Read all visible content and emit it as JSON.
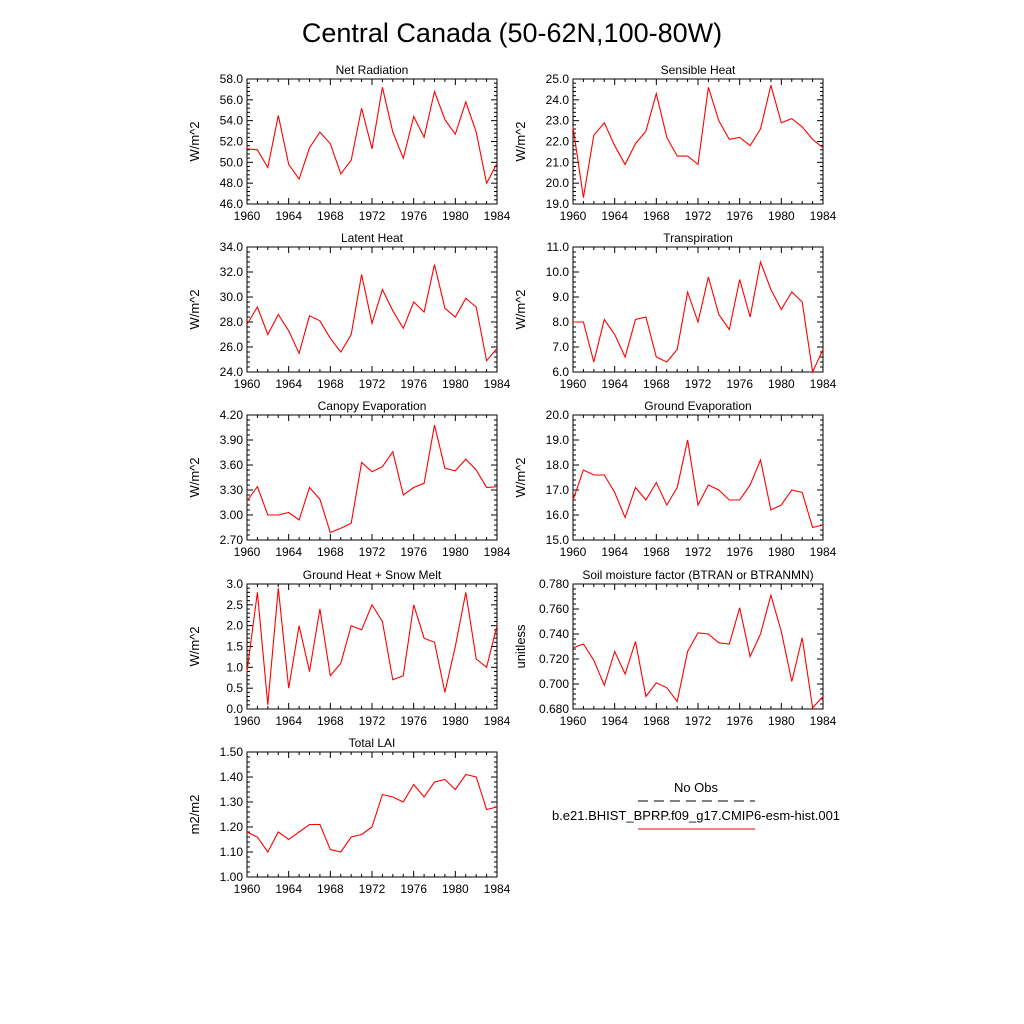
{
  "title": "Central Canada (50-62N,100-80W)",
  "line_color": "#ff0000",
  "legend": {
    "obs_label": "No Obs",
    "model_label": "b.e21.BHIST_BPRP.f09_g17.CMIP6-esm-hist.001"
  },
  "chart_data": [
    {
      "type": "line",
      "title": "Net Radiation",
      "ylabel": "W/m^2",
      "xlim": [
        1960,
        1984
      ],
      "ylim": [
        46.0,
        58.0
      ],
      "x_ticks": [
        1960,
        1964,
        1968,
        1972,
        1976,
        1980,
        1984
      ],
      "y_ticks": [
        "46.0",
        "48.0",
        "50.0",
        "52.0",
        "54.0",
        "56.0",
        "58.0"
      ],
      "x": [
        1960,
        1961,
        1962,
        1963,
        1964,
        1965,
        1966,
        1967,
        1968,
        1969,
        1970,
        1971,
        1972,
        1973,
        1974,
        1975,
        1976,
        1977,
        1978,
        1979,
        1980,
        1981,
        1982,
        1983,
        1984
      ],
      "values": [
        51.3,
        51.2,
        49.5,
        54.5,
        49.8,
        48.4,
        51.4,
        52.9,
        51.8,
        48.9,
        50.2,
        55.2,
        51.3,
        57.2,
        52.9,
        50.4,
        54.4,
        52.4,
        56.8,
        54.1,
        52.7,
        55.8,
        52.9,
        48.0,
        49.9
      ]
    },
    {
      "type": "line",
      "title": "Sensible Heat",
      "ylabel": "W/m^2",
      "xlim": [
        1960,
        1984
      ],
      "ylim": [
        19.0,
        25.0
      ],
      "x_ticks": [
        1960,
        1964,
        1968,
        1972,
        1976,
        1980,
        1984
      ],
      "y_ticks": [
        "19.0",
        "20.0",
        "21.0",
        "22.0",
        "23.0",
        "24.0",
        "25.0"
      ],
      "x": [
        1960,
        1961,
        1962,
        1963,
        1964,
        1965,
        1966,
        1967,
        1968,
        1969,
        1970,
        1971,
        1972,
        1973,
        1974,
        1975,
        1976,
        1977,
        1978,
        1979,
        1980,
        1981,
        1982,
        1983,
        1984
      ],
      "values": [
        22.7,
        19.3,
        22.3,
        22.9,
        21.8,
        20.9,
        21.9,
        22.5,
        24.3,
        22.2,
        21.3,
        21.3,
        20.9,
        24.6,
        23.0,
        22.1,
        22.2,
        21.8,
        22.6,
        24.7,
        22.9,
        23.1,
        22.7,
        22.1,
        21.7
      ]
    },
    {
      "type": "line",
      "title": "Latent Heat",
      "ylabel": "W/m^2",
      "xlim": [
        1960,
        1984
      ],
      "ylim": [
        24.0,
        34.0
      ],
      "x_ticks": [
        1960,
        1964,
        1968,
        1972,
        1976,
        1980,
        1984
      ],
      "y_ticks": [
        "24.0",
        "26.0",
        "28.0",
        "30.0",
        "32.0",
        "34.0"
      ],
      "x": [
        1960,
        1961,
        1962,
        1963,
        1964,
        1965,
        1966,
        1967,
        1968,
        1969,
        1970,
        1971,
        1972,
        1973,
        1974,
        1975,
        1976,
        1977,
        1978,
        1979,
        1980,
        1981,
        1982,
        1983,
        1984
      ],
      "values": [
        27.8,
        29.2,
        27.0,
        28.6,
        27.3,
        25.5,
        28.5,
        28.1,
        26.7,
        25.6,
        27.0,
        31.8,
        27.9,
        30.6,
        28.9,
        27.5,
        29.6,
        28.8,
        32.6,
        29.1,
        28.4,
        29.9,
        29.2,
        24.9,
        25.9
      ]
    },
    {
      "type": "line",
      "title": "Transpiration",
      "ylabel": "W/m^2",
      "xlim": [
        1960,
        1984
      ],
      "ylim": [
        6.0,
        11.0
      ],
      "x_ticks": [
        1960,
        1964,
        1968,
        1972,
        1976,
        1980,
        1984
      ],
      "y_ticks": [
        "6.0",
        "7.0",
        "8.0",
        "9.0",
        "10.0",
        "11.0"
      ],
      "x": [
        1960,
        1961,
        1962,
        1963,
        1964,
        1965,
        1966,
        1967,
        1968,
        1969,
        1970,
        1971,
        1972,
        1973,
        1974,
        1975,
        1976,
        1977,
        1978,
        1979,
        1980,
        1981,
        1982,
        1983,
        1984
      ],
      "values": [
        8.0,
        8.0,
        6.4,
        8.1,
        7.5,
        6.6,
        8.1,
        8.2,
        6.6,
        6.4,
        6.9,
        9.2,
        8.0,
        9.8,
        8.3,
        7.7,
        9.7,
        8.2,
        10.4,
        9.3,
        8.5,
        9.2,
        8.8,
        6.0,
        6.9
      ]
    },
    {
      "type": "line",
      "title": "Canopy Evaporation",
      "ylabel": "W/m^2",
      "xlim": [
        1960,
        1984
      ],
      "ylim": [
        2.7,
        4.2
      ],
      "x_ticks": [
        1960,
        1964,
        1968,
        1972,
        1976,
        1980,
        1984
      ],
      "y_ticks": [
        "2.70",
        "3.00",
        "3.30",
        "3.60",
        "3.90",
        "4.20"
      ],
      "x": [
        1960,
        1961,
        1962,
        1963,
        1964,
        1965,
        1966,
        1967,
        1968,
        1969,
        1970,
        1971,
        1972,
        1973,
        1974,
        1975,
        1976,
        1977,
        1978,
        1979,
        1980,
        1981,
        1982,
        1983,
        1984
      ],
      "values": [
        3.17,
        3.34,
        3.0,
        3.0,
        3.03,
        2.94,
        3.33,
        3.19,
        2.79,
        2.84,
        2.9,
        3.63,
        3.52,
        3.58,
        3.76,
        3.24,
        3.33,
        3.38,
        4.08,
        3.56,
        3.53,
        3.67,
        3.54,
        3.33,
        3.34
      ]
    },
    {
      "type": "line",
      "title": "Ground Evaporation",
      "ylabel": "W/m^2",
      "xlim": [
        1960,
        1984
      ],
      "ylim": [
        15.0,
        20.0
      ],
      "x_ticks": [
        1960,
        1964,
        1968,
        1972,
        1976,
        1980,
        1984
      ],
      "y_ticks": [
        "15.0",
        "16.0",
        "17.0",
        "18.0",
        "19.0",
        "20.0"
      ],
      "x": [
        1960,
        1961,
        1962,
        1963,
        1964,
        1965,
        1966,
        1967,
        1968,
        1969,
        1970,
        1971,
        1972,
        1973,
        1974,
        1975,
        1976,
        1977,
        1978,
        1979,
        1980,
        1981,
        1982,
        1983,
        1984
      ],
      "values": [
        16.6,
        17.8,
        17.6,
        17.6,
        16.9,
        15.9,
        17.1,
        16.6,
        17.3,
        16.4,
        17.1,
        19.0,
        16.4,
        17.2,
        17.0,
        16.6,
        16.6,
        17.2,
        18.2,
        16.2,
        16.4,
        17.0,
        16.9,
        15.5,
        15.6
      ]
    },
    {
      "type": "line",
      "title": "Ground Heat + Snow Melt",
      "ylabel": "W/m^2",
      "xlim": [
        1960,
        1984
      ],
      "ylim": [
        0.0,
        3.0
      ],
      "x_ticks": [
        1960,
        1964,
        1968,
        1972,
        1976,
        1980,
        1984
      ],
      "y_ticks": [
        "0.0",
        "0.5",
        "1.0",
        "1.5",
        "2.0",
        "2.5",
        "3.0"
      ],
      "x": [
        1960,
        1961,
        1962,
        1963,
        1964,
        1965,
        1966,
        1967,
        1968,
        1969,
        1970,
        1971,
        1972,
        1973,
        1974,
        1975,
        1976,
        1977,
        1978,
        1979,
        1980,
        1981,
        1982,
        1983,
        1984
      ],
      "values": [
        0.9,
        2.8,
        0.1,
        2.9,
        0.5,
        2.0,
        0.9,
        2.4,
        0.8,
        1.1,
        2.0,
        1.9,
        2.5,
        2.1,
        0.7,
        0.8,
        2.5,
        1.7,
        1.6,
        0.4,
        1.5,
        2.8,
        1.2,
        1.0,
        2.0
      ]
    },
    {
      "type": "line",
      "title": "Soil moisture factor (BTRAN or BTRANMN)",
      "ylabel": "unitless",
      "xlim": [
        1960,
        1984
      ],
      "ylim": [
        0.68,
        0.78
      ],
      "x_ticks": [
        1960,
        1964,
        1968,
        1972,
        1976,
        1980,
        1984
      ],
      "y_ticks": [
        "0.680",
        "0.700",
        "0.720",
        "0.740",
        "0.760",
        "0.780"
      ],
      "x": [
        1960,
        1961,
        1962,
        1963,
        1964,
        1965,
        1966,
        1967,
        1968,
        1969,
        1970,
        1971,
        1972,
        1973,
        1974,
        1975,
        1976,
        1977,
        1978,
        1979,
        1980,
        1981,
        1982,
        1983,
        1984
      ],
      "values": [
        0.729,
        0.732,
        0.719,
        0.699,
        0.726,
        0.708,
        0.734,
        0.69,
        0.701,
        0.697,
        0.686,
        0.726,
        0.741,
        0.74,
        0.733,
        0.732,
        0.761,
        0.722,
        0.74,
        0.771,
        0.742,
        0.702,
        0.737,
        0.681,
        0.69
      ]
    },
    {
      "type": "line",
      "title": "Total LAI",
      "ylabel": "m2/m2",
      "xlim": [
        1960,
        1984
      ],
      "ylim": [
        1.0,
        1.5
      ],
      "x_ticks": [
        1960,
        1964,
        1968,
        1972,
        1976,
        1980,
        1984
      ],
      "y_ticks": [
        "1.00",
        "1.10",
        "1.20",
        "1.30",
        "1.40",
        "1.50"
      ],
      "x": [
        1960,
        1961,
        1962,
        1963,
        1964,
        1965,
        1966,
        1967,
        1968,
        1969,
        1970,
        1971,
        1972,
        1973,
        1974,
        1975,
        1976,
        1977,
        1978,
        1979,
        1980,
        1981,
        1982,
        1983,
        1984
      ],
      "values": [
        1.18,
        1.16,
        1.1,
        1.18,
        1.15,
        1.18,
        1.21,
        1.21,
        1.11,
        1.1,
        1.16,
        1.17,
        1.2,
        1.33,
        1.32,
        1.3,
        1.37,
        1.32,
        1.38,
        1.39,
        1.35,
        1.41,
        1.4,
        1.27,
        1.28
      ]
    }
  ]
}
